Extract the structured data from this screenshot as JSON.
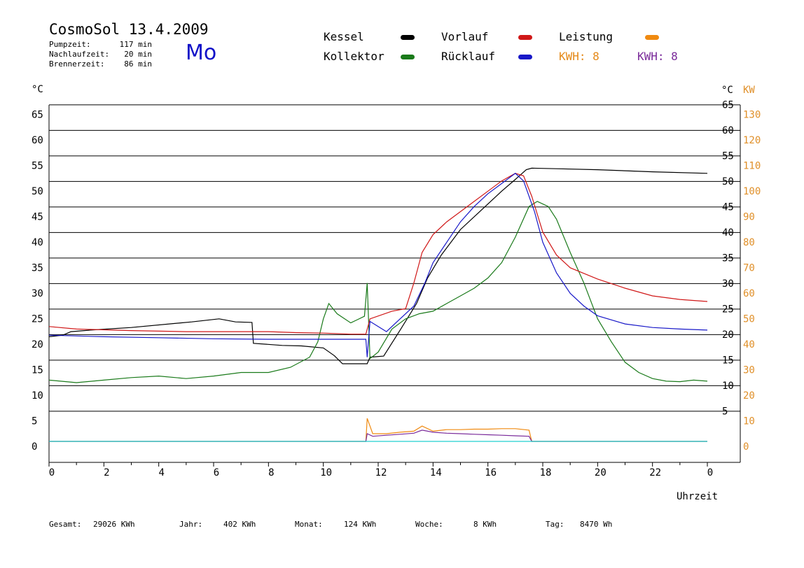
{
  "header": {
    "title": "CosmoSol 13.4.2009",
    "weekday": "Mo",
    "info": [
      {
        "label": "Pumpzeit:",
        "value": "117 min"
      },
      {
        "label": "Nachlaufzeit:",
        "value": "20 min"
      },
      {
        "label": "Brennerzeit:",
        "value": "86 min"
      }
    ]
  },
  "legend": {
    "kessel": "Kessel",
    "kollektor": "Kollektor",
    "vorlauf": "Vorlauf",
    "ruecklauf": "Rücklauf",
    "leistung": "Leistung",
    "kwh_a": "KWH: 8",
    "kwh_b": "KWH: 8"
  },
  "footer": {
    "gesamt_label": "Gesamt:",
    "gesamt_value": "29026 KWh",
    "jahr_label": "Jahr:",
    "jahr_value": "402 KWh",
    "monat_label": "Monat:",
    "monat_value": "124 KWh",
    "woche_label": "Woche:",
    "woche_value": "8 KWh",
    "tag_label": "Tag:",
    "tag_value": "8470 Wh"
  },
  "colors": {
    "kessel": "#000000",
    "kollektor": "#1a7a1a",
    "vorlauf": "#d01818",
    "ruecklauf": "#1818c8",
    "leistung": "#f08a10",
    "kwh_b": "#7a2a9a",
    "pump": "#20d0d0",
    "right_kw_axis": "#e0902a"
  },
  "chart_data": {
    "type": "line",
    "title": "CosmoSol 13.4.2009",
    "xlabel": "Uhrzeit",
    "ylabel_left": "°C",
    "ylabel_right_1": "°C",
    "ylabel_right_2": "KW",
    "x_ticks": [
      "0",
      "2",
      "4",
      "6",
      "8",
      "10",
      "12",
      "14",
      "16",
      "18",
      "20",
      "22",
      "0"
    ],
    "y_left_ticks": [
      "0",
      "5",
      "10",
      "15",
      "20",
      "25",
      "30",
      "35",
      "40",
      "45",
      "50",
      "55",
      "60",
      "65"
    ],
    "y_right_temp_ticks": [
      "5",
      "10",
      "15",
      "20",
      "25",
      "30",
      "35",
      "40",
      "45",
      "50",
      "55",
      "60",
      "65"
    ],
    "y_right_kw_ticks": [
      "0",
      "10",
      "20",
      "30",
      "40",
      "50",
      "60",
      "70",
      "80",
      "90",
      "100",
      "110",
      "120",
      "130"
    ],
    "xlim": [
      0,
      24
    ],
    "ylim": [
      0,
      68
    ],
    "grid": "horizontal",
    "series": [
      {
        "name": "Kessel",
        "color": "#000000",
        "x": [
          0,
          0.5,
          0.8,
          1.5,
          3,
          4.8,
          5.2,
          6.2,
          6.8,
          7.4,
          7.45,
          8.5,
          9.2,
          10,
          10.4,
          10.7,
          11,
          11.6,
          11.7,
          12.2,
          12.8,
          13.4,
          13.8,
          14.3,
          15,
          15.8,
          16.5,
          17,
          17.4,
          17.6,
          18.5,
          20,
          22,
          24
        ],
        "y": [
          20.5,
          20.8,
          21.5,
          21.8,
          22.3,
          23.2,
          23.4,
          24,
          23.4,
          23.3,
          19.2,
          18.8,
          18.7,
          18.3,
          16.8,
          15.2,
          15.2,
          15.2,
          16.5,
          16.7,
          21.8,
          27,
          32,
          36.5,
          41.5,
          45.5,
          49,
          51.3,
          53.2,
          53.5,
          53.4,
          53.2,
          52.8,
          52.5
        ]
      },
      {
        "name": "Vorlauf",
        "color": "#d01818",
        "x": [
          0,
          1,
          3,
          5,
          7,
          8,
          9,
          10,
          11,
          11.55,
          11.7,
          12.5,
          13,
          13.3,
          13.6,
          14,
          14.5,
          15,
          15.5,
          16,
          16.5,
          17,
          17.3,
          17.6,
          18,
          18.5,
          19,
          20,
          21,
          22,
          23,
          24
        ],
        "y": [
          22.5,
          22,
          21.7,
          21.5,
          21.5,
          21.5,
          21.3,
          21.2,
          21,
          21,
          24,
          25.5,
          26,
          31,
          37,
          40.5,
          43,
          45,
          47,
          49,
          51,
          52.5,
          52,
          48,
          41,
          36.5,
          34,
          31.8,
          30,
          28.5,
          27.8,
          27.4
        ]
      },
      {
        "name": "Rücklauf",
        "color": "#1818c8",
        "x": [
          0,
          2,
          4,
          6,
          8,
          10,
          11.55,
          11.6,
          11.7,
          12.3,
          12.8,
          13.3,
          13.7,
          14,
          14.5,
          15,
          15.5,
          16,
          16.5,
          17,
          17.3,
          17.7,
          18,
          18.5,
          19,
          19.5,
          20,
          21,
          22,
          23,
          24
        ],
        "y": [
          20.8,
          20.5,
          20.3,
          20.1,
          20,
          20,
          20,
          16.5,
          23.5,
          21.5,
          24,
          26.5,
          31,
          35,
          39,
          43,
          46,
          48.5,
          50.5,
          52.5,
          51,
          45,
          39,
          33,
          29,
          26.5,
          24.6,
          23,
          22.3,
          22,
          21.8
        ]
      },
      {
        "name": "Kollektor",
        "color": "#1a7a1a",
        "x": [
          0,
          1,
          2,
          3,
          4,
          5,
          6,
          7,
          8,
          8.8,
          9.5,
          9.8,
          10,
          10.2,
          10.5,
          11,
          11.5,
          11.6,
          11.7,
          12,
          12.5,
          13,
          13.5,
          14,
          14.5,
          15,
          15.5,
          16,
          16.5,
          17,
          17.5,
          17.8,
          18.2,
          18.5,
          19,
          19.5,
          20,
          20.5,
          21,
          21.5,
          22,
          22.5,
          23,
          23.5,
          24
        ],
        "y": [
          12,
          11.5,
          12,
          12.5,
          12.8,
          12.3,
          12.8,
          13.5,
          13.5,
          14.5,
          16.5,
          19.5,
          24,
          27,
          25,
          23.2,
          24.5,
          31,
          16.2,
          17.5,
          22,
          24,
          25,
          25.5,
          27,
          28.5,
          30,
          32,
          35,
          40,
          46,
          47,
          46,
          43.5,
          37,
          31,
          24,
          19.5,
          15.5,
          13.5,
          12.3,
          11.8,
          11.7,
          12,
          11.8
        ]
      },
      {
        "name": "Leistung",
        "color": "#f08a10",
        "x": [
          0,
          11.55,
          11.6,
          11.8,
          12.3,
          12.8,
          13.3,
          13.6,
          14,
          14.5,
          15,
          15.5,
          16,
          16.5,
          17,
          17.5,
          17.6,
          24
        ],
        "y": [
          0,
          0,
          4.5,
          1.5,
          1.5,
          1.8,
          2,
          3,
          2,
          2.3,
          2.3,
          2.4,
          2.4,
          2.5,
          2.5,
          2.2,
          0,
          0
        ]
      },
      {
        "name": "KWH",
        "color": "#7a2a9a",
        "x": [
          0,
          11.55,
          11.6,
          11.8,
          12.3,
          12.8,
          13.3,
          13.6,
          14,
          14.5,
          15,
          15.5,
          16,
          16.5,
          17,
          17.5,
          17.6,
          24
        ],
        "y": [
          0,
          0,
          1.5,
          1,
          1.2,
          1.4,
          1.6,
          2.2,
          1.8,
          1.6,
          1.5,
          1.4,
          1.3,
          1.2,
          1.1,
          1,
          0,
          0
        ]
      }
    ]
  }
}
